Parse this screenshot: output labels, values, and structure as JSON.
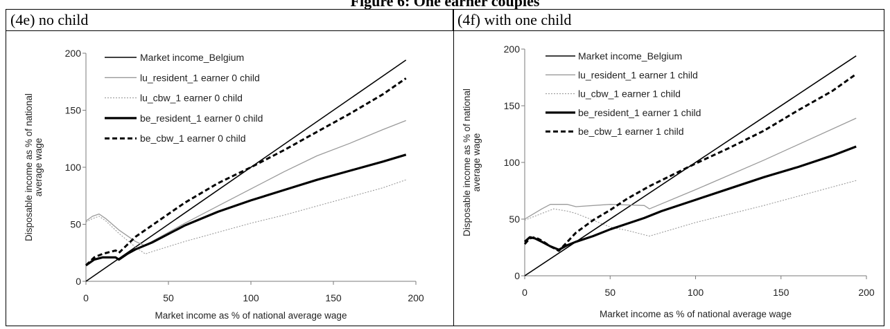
{
  "figure_title": "Figure 6: One earner couples",
  "panels": [
    {
      "label": "(4e) no child"
    },
    {
      "label": "(4f) with one child"
    }
  ],
  "chart_data": [
    {
      "type": "line",
      "title": "(4e) no child",
      "xlabel": "Market income as % of national average wage",
      "ylabel_lines": [
        "Disposable income as % of national",
        "average wage"
      ],
      "xlim": [
        0,
        200
      ],
      "ylim": [
        0,
        200
      ],
      "xticks": [
        "0",
        "50",
        "100",
        "150",
        "200"
      ],
      "yticks": [
        "0",
        "50",
        "100",
        "150",
        "200"
      ],
      "grid": false,
      "legend_position": "top-left",
      "series": [
        {
          "name": "Market income_Belgium",
          "style": "thin-black",
          "x": [
            0,
            194
          ],
          "y": [
            0,
            194
          ]
        },
        {
          "name": "lu_resident_1 earner 0 child",
          "style": "thin-gray",
          "x": [
            0,
            4,
            8,
            12,
            20,
            30,
            36,
            40,
            60,
            80,
            100,
            120,
            140,
            160,
            180,
            194
          ],
          "y": [
            53,
            57,
            59,
            55,
            45,
            35,
            31,
            35,
            51,
            66,
            81,
            96,
            110,
            121,
            133,
            141
          ]
        },
        {
          "name": "lu_cbw_1 earner 0 child",
          "style": "dotted-gray",
          "x": [
            0,
            4,
            8,
            12,
            20,
            30,
            36,
            40,
            60,
            80,
            100,
            120,
            140,
            160,
            180,
            194
          ],
          "y": [
            52,
            55,
            57,
            53,
            42,
            30,
            24,
            26,
            35,
            43,
            51,
            58,
            66,
            74,
            82,
            89
          ]
        },
        {
          "name": "be_resident_1 earner 0 child",
          "style": "thick-black",
          "x": [
            0,
            5,
            10,
            18,
            20,
            25,
            30,
            40,
            60,
            80,
            100,
            120,
            140,
            160,
            180,
            194
          ],
          "y": [
            14,
            19,
            21,
            21,
            19,
            24,
            28,
            34,
            49,
            61,
            71,
            80,
            89,
            97,
            105,
            111
          ]
        },
        {
          "name": "be_cbw_1 earner 0 child",
          "style": "dashed-black",
          "x": [
            0,
            5,
            10,
            18,
            20,
            25,
            30,
            35,
            50,
            60,
            80,
            100,
            120,
            140,
            160,
            180,
            194
          ],
          "y": [
            14,
            21,
            24,
            27,
            25,
            32,
            39,
            44,
            59,
            69,
            86,
            100,
            115,
            131,
            147,
            164,
            178
          ]
        }
      ]
    },
    {
      "type": "line",
      "title": "(4f) with one child",
      "xlabel": "Market income as % of national average wage",
      "ylabel_lines": [
        "Disposable income as % of national",
        "average wage"
      ],
      "xlim": [
        0,
        200
      ],
      "ylim": [
        0,
        200
      ],
      "xticks": [
        "0",
        "50",
        "100",
        "150",
        "200"
      ],
      "yticks": [
        "0",
        "50",
        "100",
        "150",
        "200"
      ],
      "grid": false,
      "legend_position": "top-left",
      "series": [
        {
          "name": "Market income_Belgium",
          "style": "thin-black",
          "x": [
            0,
            194
          ],
          "y": [
            0,
            194
          ]
        },
        {
          "name": "lu_resident_1 earner 1 child",
          "style": "thin-gray",
          "x": [
            0,
            10,
            15,
            25,
            30,
            50,
            70,
            73,
            100,
            140,
            194
          ],
          "y": [
            50,
            59,
            63,
            63,
            61,
            63,
            62,
            59,
            76,
            102,
            139
          ]
        },
        {
          "name": "lu_cbw_1 earner 1 child",
          "style": "dotted-gray",
          "x": [
            0,
            10,
            17,
            25,
            30,
            40,
            50,
            60,
            73,
            100,
            140,
            194
          ],
          "y": [
            49,
            55,
            59,
            57,
            55,
            49,
            43,
            40,
            35,
            47,
            62,
            84
          ]
        },
        {
          "name": "be_resident_1 earner 1 child",
          "style": "thick-black",
          "x": [
            0,
            3,
            6,
            10,
            15,
            20,
            25,
            30,
            40,
            50,
            60,
            70,
            80,
            100,
            120,
            140,
            160,
            180,
            194
          ],
          "y": [
            30,
            34,
            33,
            30,
            26,
            23,
            27,
            30,
            35,
            41,
            46,
            51,
            57,
            67,
            77,
            87,
            96,
            106,
            114
          ]
        },
        {
          "name": "be_cbw_1 earner 1 child",
          "style": "dashed-black",
          "x": [
            0,
            3,
            6,
            10,
            15,
            20,
            25,
            30,
            40,
            50,
            60,
            73,
            100,
            120,
            140,
            160,
            180,
            194
          ],
          "y": [
            28,
            33,
            34,
            31,
            26,
            22,
            30,
            38,
            49,
            58,
            68,
            79,
            99,
            113,
            128,
            146,
            163,
            178
          ]
        }
      ]
    }
  ]
}
